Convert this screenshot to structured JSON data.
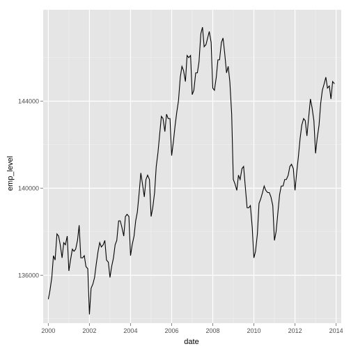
{
  "chart_data": {
    "type": "line",
    "xlabel": "date",
    "ylabel": "emp_level",
    "x_ticks": [
      "2000",
      "2002",
      "2004",
      "2006",
      "2008",
      "2010",
      "2012",
      "2014"
    ],
    "y_ticks": [
      "136000",
      "140000",
      "144000"
    ],
    "xlim": [
      1999.75,
      2014.25
    ],
    "ylim": [
      133800,
      148200
    ],
    "grid": true,
    "colors": {
      "panel": "#e5e5e5",
      "grid_major": "#ffffff",
      "grid_minor": "#f2f2f2",
      "line": "#000000"
    },
    "series": [
      {
        "values": [
          [
            2000.0,
            134900
          ],
          [
            2000.08,
            135300
          ],
          [
            2000.17,
            135900
          ],
          [
            2000.25,
            136900
          ],
          [
            2000.33,
            136700
          ],
          [
            2000.42,
            137900
          ],
          [
            2000.5,
            137800
          ],
          [
            2000.58,
            137400
          ],
          [
            2000.67,
            136800
          ],
          [
            2000.75,
            137500
          ],
          [
            2000.83,
            137400
          ],
          [
            2000.92,
            137800
          ],
          [
            2001.0,
            136200
          ],
          [
            2001.08,
            136700
          ],
          [
            2001.17,
            137200
          ],
          [
            2001.25,
            137100
          ],
          [
            2001.33,
            137200
          ],
          [
            2001.42,
            137600
          ],
          [
            2001.5,
            138300
          ],
          [
            2001.58,
            136800
          ],
          [
            2001.67,
            136800
          ],
          [
            2001.75,
            136900
          ],
          [
            2001.83,
            136400
          ],
          [
            2001.92,
            136300
          ],
          [
            2002.0,
            134200
          ],
          [
            2002.08,
            135400
          ],
          [
            2002.17,
            135600
          ],
          [
            2002.25,
            135900
          ],
          [
            2002.33,
            136500
          ],
          [
            2002.42,
            137100
          ],
          [
            2002.5,
            137500
          ],
          [
            2002.58,
            137300
          ],
          [
            2002.67,
            137400
          ],
          [
            2002.75,
            137600
          ],
          [
            2002.83,
            136700
          ],
          [
            2002.92,
            136600
          ],
          [
            2003.0,
            135900
          ],
          [
            2003.08,
            136400
          ],
          [
            2003.17,
            136800
          ],
          [
            2003.25,
            137400
          ],
          [
            2003.33,
            137600
          ],
          [
            2003.42,
            138500
          ],
          [
            2003.5,
            138500
          ],
          [
            2003.58,
            138200
          ],
          [
            2003.67,
            137800
          ],
          [
            2003.75,
            138700
          ],
          [
            2003.83,
            138800
          ],
          [
            2003.92,
            138700
          ],
          [
            2004.0,
            136900
          ],
          [
            2004.08,
            137400
          ],
          [
            2004.17,
            137800
          ],
          [
            2004.25,
            138500
          ],
          [
            2004.33,
            138900
          ],
          [
            2004.42,
            139800
          ],
          [
            2004.5,
            140700
          ],
          [
            2004.58,
            140200
          ],
          [
            2004.67,
            139600
          ],
          [
            2004.75,
            140400
          ],
          [
            2004.83,
            140600
          ],
          [
            2004.92,
            140400
          ],
          [
            2005.0,
            138700
          ],
          [
            2005.08,
            139100
          ],
          [
            2005.17,
            139800
          ],
          [
            2005.25,
            141000
          ],
          [
            2005.33,
            141600
          ],
          [
            2005.42,
            142500
          ],
          [
            2005.5,
            143300
          ],
          [
            2005.58,
            143200
          ],
          [
            2005.67,
            142600
          ],
          [
            2005.75,
            143400
          ],
          [
            2005.83,
            143200
          ],
          [
            2005.92,
            143200
          ],
          [
            2006.0,
            141500
          ],
          [
            2006.08,
            142100
          ],
          [
            2006.17,
            142900
          ],
          [
            2006.25,
            143500
          ],
          [
            2006.33,
            144000
          ],
          [
            2006.42,
            145100
          ],
          [
            2006.5,
            145600
          ],
          [
            2006.58,
            145400
          ],
          [
            2006.67,
            144900
          ],
          [
            2006.75,
            146100
          ],
          [
            2006.83,
            146000
          ],
          [
            2006.92,
            146100
          ],
          [
            2007.0,
            144300
          ],
          [
            2007.08,
            144500
          ],
          [
            2007.17,
            145300
          ],
          [
            2007.25,
            145300
          ],
          [
            2007.33,
            145800
          ],
          [
            2007.42,
            147100
          ],
          [
            2007.5,
            147400
          ],
          [
            2007.58,
            146500
          ],
          [
            2007.67,
            146600
          ],
          [
            2007.75,
            146900
          ],
          [
            2007.83,
            147200
          ],
          [
            2007.92,
            146700
          ],
          [
            2008.0,
            144600
          ],
          [
            2008.08,
            144500
          ],
          [
            2008.17,
            145100
          ],
          [
            2008.25,
            145900
          ],
          [
            2008.33,
            145900
          ],
          [
            2008.42,
            146700
          ],
          [
            2008.5,
            146900
          ],
          [
            2008.58,
            146200
          ],
          [
            2008.67,
            145300
          ],
          [
            2008.75,
            145600
          ],
          [
            2008.83,
            144900
          ],
          [
            2008.92,
            143400
          ],
          [
            2009.0,
            140400
          ],
          [
            2009.08,
            140200
          ],
          [
            2009.17,
            139900
          ],
          [
            2009.25,
            140600
          ],
          [
            2009.33,
            140400
          ],
          [
            2009.42,
            140900
          ],
          [
            2009.5,
            141000
          ],
          [
            2009.58,
            140100
          ],
          [
            2009.67,
            139100
          ],
          [
            2009.75,
            139100
          ],
          [
            2009.83,
            139200
          ],
          [
            2009.92,
            138200
          ],
          [
            2010.0,
            136800
          ],
          [
            2010.08,
            137100
          ],
          [
            2010.17,
            137900
          ],
          [
            2010.25,
            139300
          ],
          [
            2010.33,
            139500
          ],
          [
            2010.42,
            139800
          ],
          [
            2010.5,
            140100
          ],
          [
            2010.58,
            139900
          ],
          [
            2010.67,
            139800
          ],
          [
            2010.75,
            139800
          ],
          [
            2010.83,
            139600
          ],
          [
            2010.92,
            139200
          ],
          [
            2011.0,
            137600
          ],
          [
            2011.08,
            138000
          ],
          [
            2011.17,
            138900
          ],
          [
            2011.25,
            139700
          ],
          [
            2011.33,
            140100
          ],
          [
            2011.42,
            140100
          ],
          [
            2011.5,
            140400
          ],
          [
            2011.58,
            140400
          ],
          [
            2011.67,
            140600
          ],
          [
            2011.75,
            141000
          ],
          [
            2011.83,
            141100
          ],
          [
            2011.92,
            140900
          ],
          [
            2012.0,
            139900
          ],
          [
            2012.08,
            140700
          ],
          [
            2012.17,
            141500
          ],
          [
            2012.25,
            142300
          ],
          [
            2012.33,
            142900
          ],
          [
            2012.42,
            143200
          ],
          [
            2012.5,
            143100
          ],
          [
            2012.58,
            142400
          ],
          [
            2012.67,
            143300
          ],
          [
            2012.75,
            144100
          ],
          [
            2012.83,
            143700
          ],
          [
            2012.92,
            143100
          ],
          [
            2013.0,
            141600
          ],
          [
            2013.08,
            142300
          ],
          [
            2013.17,
            142900
          ],
          [
            2013.25,
            143900
          ],
          [
            2013.33,
            144500
          ],
          [
            2013.42,
            144800
          ],
          [
            2013.5,
            145100
          ],
          [
            2013.58,
            144600
          ],
          [
            2013.67,
            144700
          ],
          [
            2013.75,
            144100
          ],
          [
            2013.83,
            144900
          ],
          [
            2013.92,
            144800
          ]
        ]
      }
    ]
  }
}
